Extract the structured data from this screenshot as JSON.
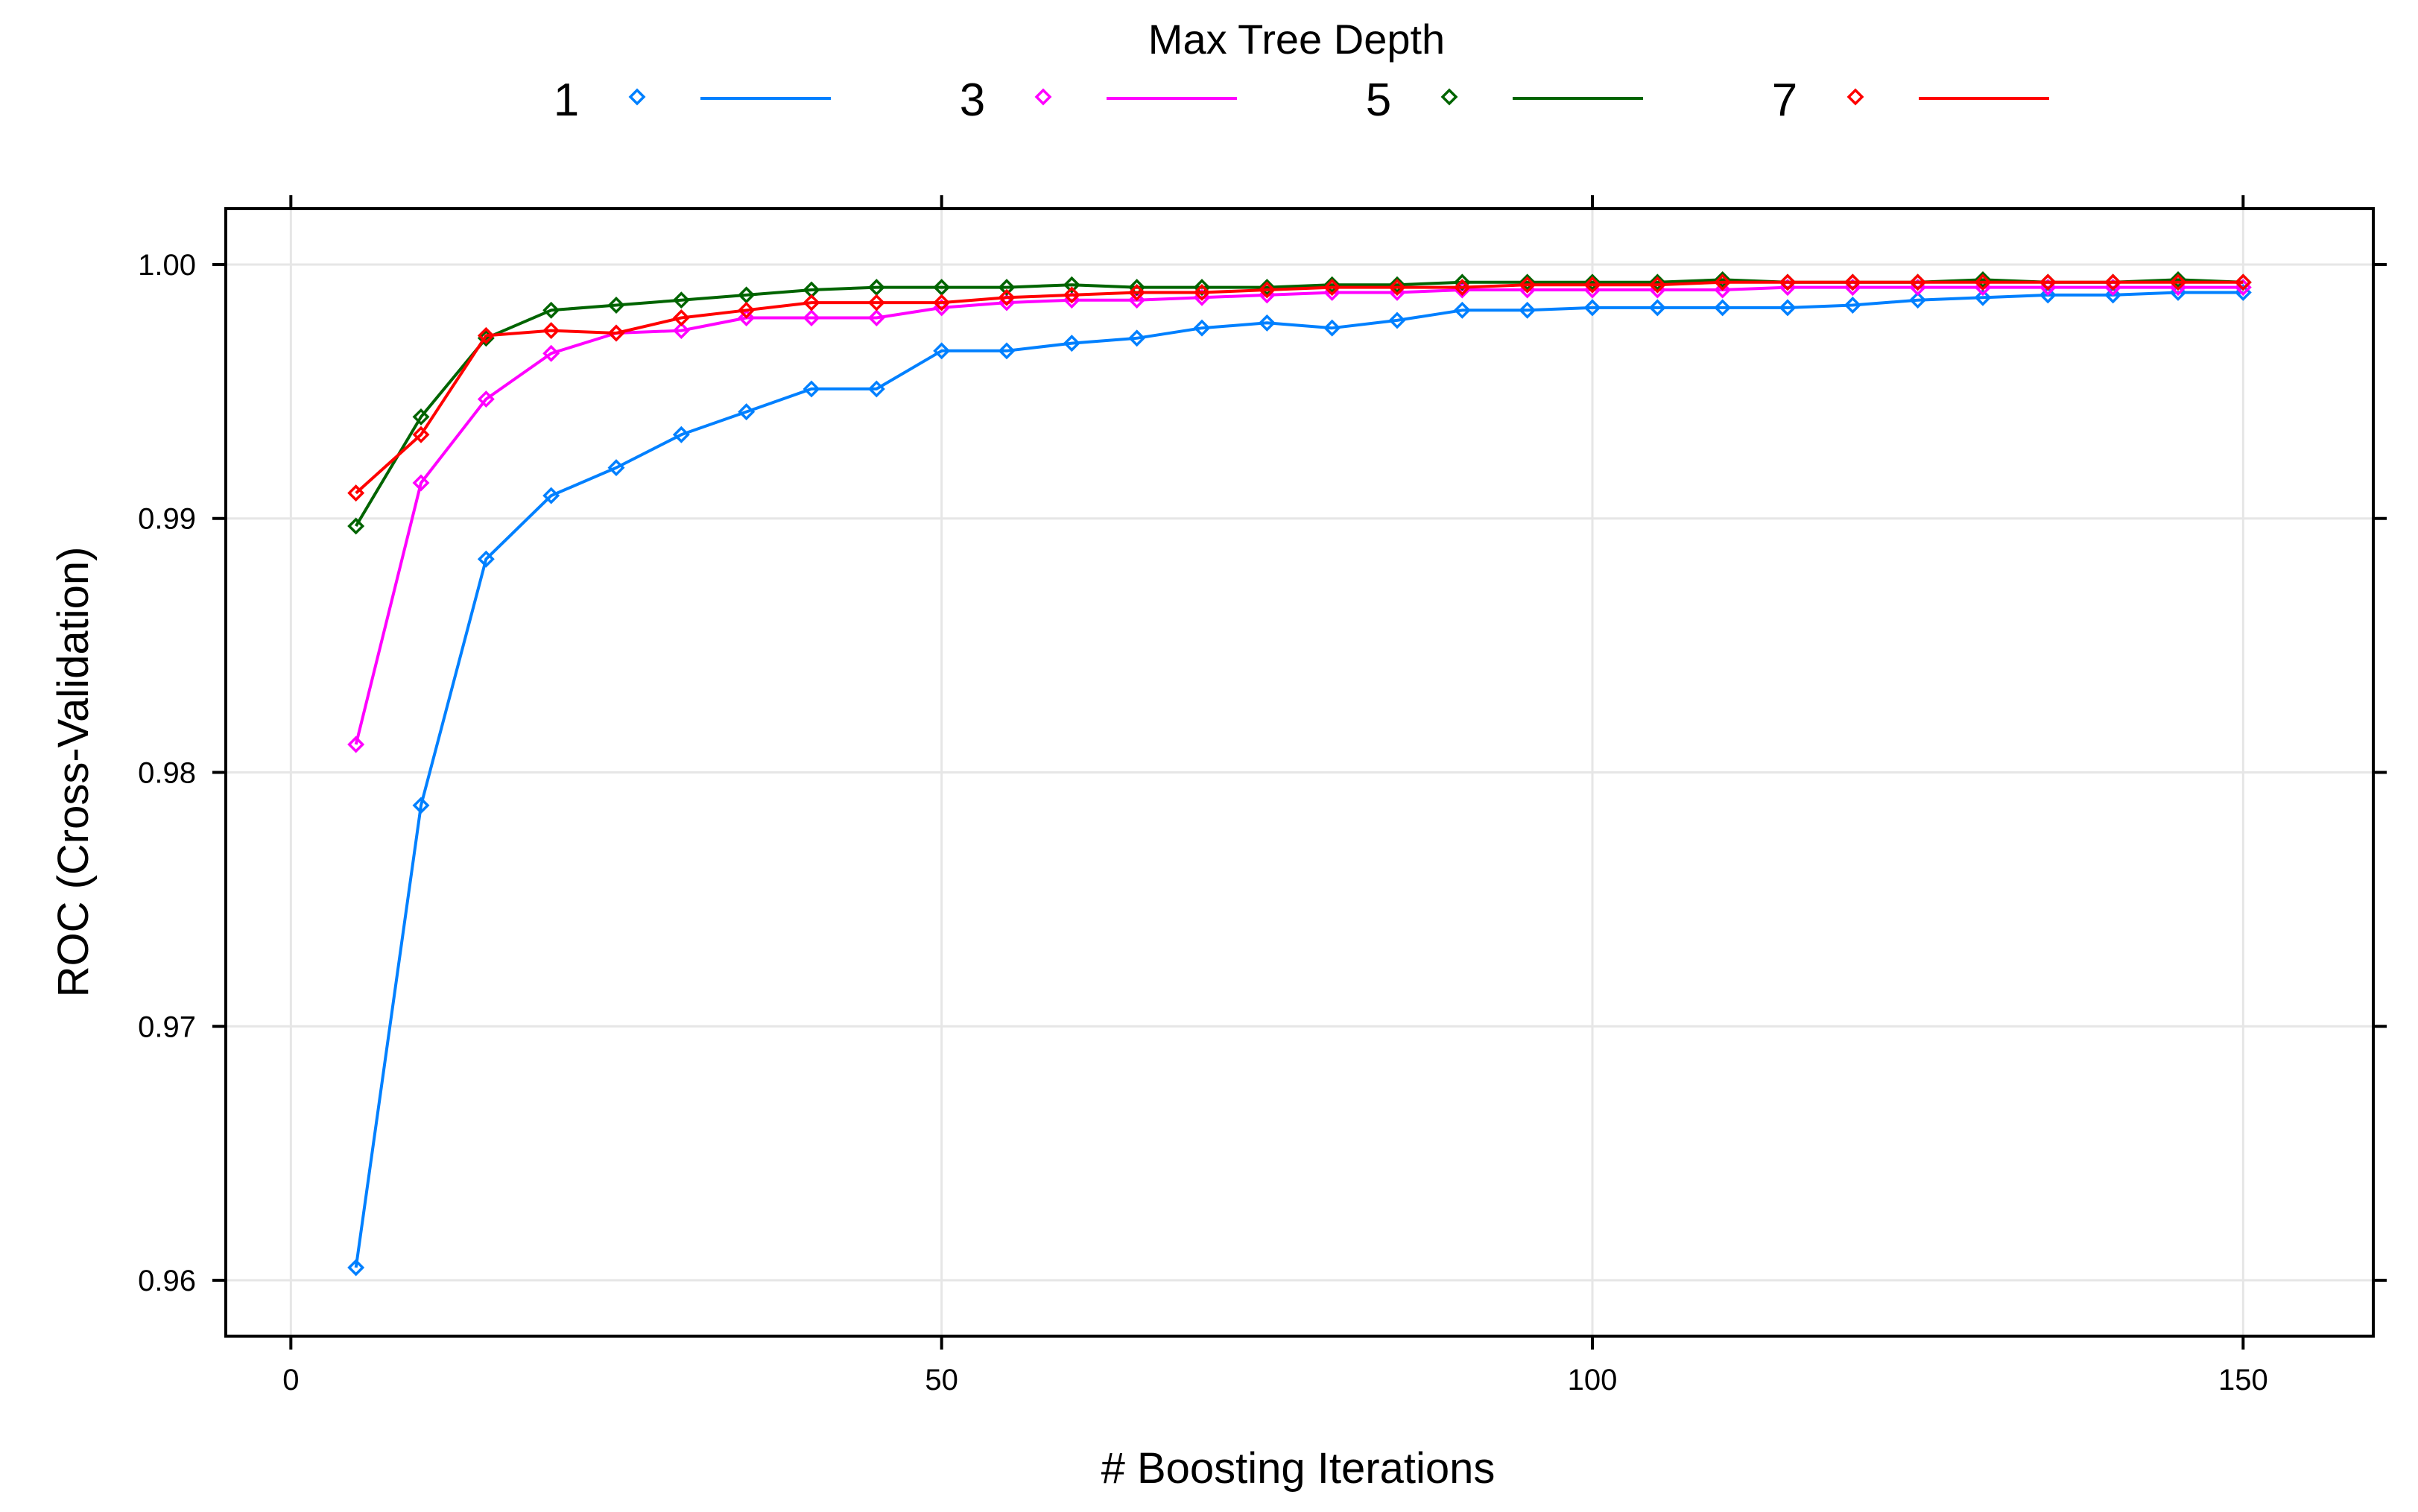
{
  "chart_data": {
    "type": "line",
    "xlabel": "# Boosting Iterations",
    "ylabel": "ROC (Cross-Validation)",
    "legend_title": "Max Tree Depth",
    "legend_position": "top",
    "grid": true,
    "xlim": [
      -5,
      160
    ],
    "ylim": [
      0.9578,
      1.0022
    ],
    "x_ticks": [
      0,
      50,
      100,
      150
    ],
    "x_tick_labels": [
      "0",
      "50",
      "100",
      "150"
    ],
    "y_ticks": [
      0.96,
      0.97,
      0.98,
      0.99,
      1.0
    ],
    "y_tick_labels": [
      "0.96",
      "0.97",
      "0.98",
      "0.99",
      "1.00"
    ],
    "x": [
      5,
      10,
      15,
      20,
      25,
      30,
      35,
      40,
      45,
      50,
      55,
      60,
      65,
      70,
      75,
      80,
      85,
      90,
      95,
      100,
      105,
      110,
      115,
      120,
      125,
      130,
      135,
      140,
      145,
      150
    ],
    "series": [
      {
        "name": "1",
        "color": "#0080ff",
        "values": [
          0.9605,
          0.9787,
          0.9884,
          0.9909,
          0.992,
          0.9933,
          0.9942,
          0.9951,
          0.9951,
          0.9966,
          0.9966,
          0.9969,
          0.9971,
          0.9975,
          0.9977,
          0.9975,
          0.9978,
          0.9982,
          0.9982,
          0.9983,
          0.9983,
          0.9983,
          0.9983,
          0.9984,
          0.9986,
          0.9987,
          0.9988,
          0.9988,
          0.9989,
          0.9989
        ]
      },
      {
        "name": "3",
        "color": "#ff00ff",
        "values": [
          0.9811,
          0.9914,
          0.9947,
          0.9965,
          0.9973,
          0.9974,
          0.9979,
          0.9979,
          0.9979,
          0.9983,
          0.9985,
          0.9986,
          0.9986,
          0.9987,
          0.9988,
          0.9989,
          0.9989,
          0.999,
          0.999,
          0.999,
          0.999,
          0.999,
          0.9991,
          0.9991,
          0.9991,
          0.9991,
          0.9991,
          0.9991,
          0.9991,
          0.9991
        ]
      },
      {
        "name": "5",
        "color": "#006400",
        "values": [
          0.9897,
          0.994,
          0.9971,
          0.9982,
          0.9984,
          0.9986,
          0.9988,
          0.999,
          0.9991,
          0.9991,
          0.9991,
          0.9992,
          0.9991,
          0.9991,
          0.9991,
          0.9992,
          0.9992,
          0.9993,
          0.9993,
          0.9993,
          0.9993,
          0.9994,
          0.9993,
          0.9993,
          0.9993,
          0.9994,
          0.9993,
          0.9993,
          0.9994,
          0.9993
        ]
      },
      {
        "name": "7",
        "color": "#ff0000",
        "values": [
          0.991,
          0.9933,
          0.9972,
          0.9974,
          0.9973,
          0.9979,
          0.9982,
          0.9985,
          0.9985,
          0.9985,
          0.9987,
          0.9988,
          0.9989,
          0.9989,
          0.999,
          0.9991,
          0.9991,
          0.9991,
          0.9992,
          0.9992,
          0.9992,
          0.9993,
          0.9993,
          0.9993,
          0.9993,
          0.9993,
          0.9993,
          0.9993,
          0.9993,
          0.9993
        ]
      }
    ]
  }
}
